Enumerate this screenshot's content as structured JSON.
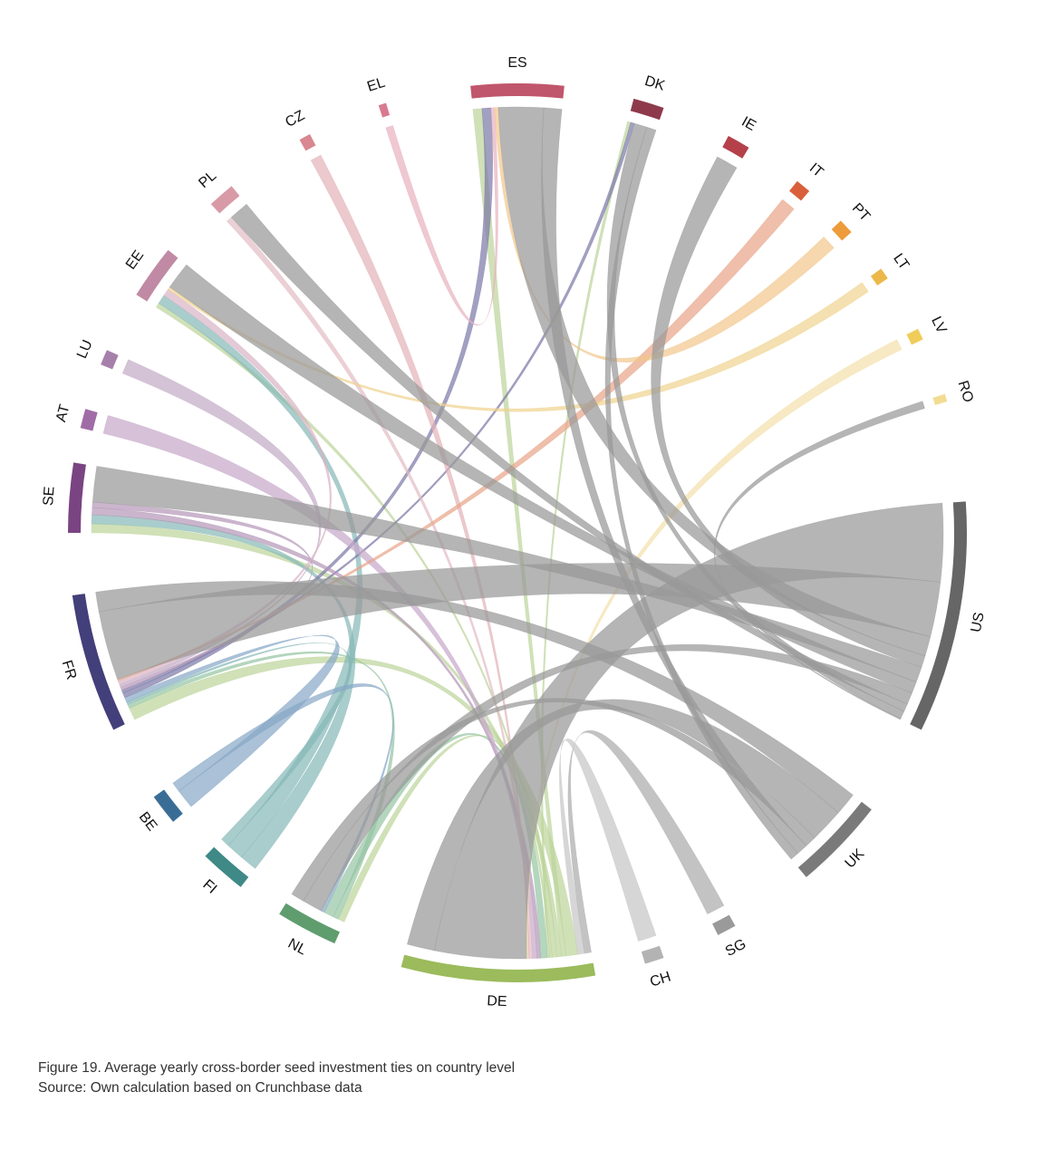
{
  "figure": {
    "caption": "Figure 19. Average yearly cross-border seed investment ties on country level",
    "source": "Source: Own calculation based on Crunchbase data"
  },
  "chart_data": {
    "type": "chord",
    "title": "",
    "nodes": [
      {
        "id": "ES",
        "label": "ES",
        "color": "#c0566b",
        "size": 14
      },
      {
        "id": "DK",
        "label": "DK",
        "color": "#8e3a4c",
        "size": 6
      },
      {
        "id": "IE",
        "label": "IE",
        "color": "#b5404a",
        "size": 4
      },
      {
        "id": "IT",
        "label": "IT",
        "color": "#d9603a",
        "size": 2.5
      },
      {
        "id": "PT",
        "label": "PT",
        "color": "#ee9b3c",
        "size": 2.5
      },
      {
        "id": "LT",
        "label": "LT",
        "color": "#ecb849",
        "size": 1.8
      },
      {
        "id": "LV",
        "label": "LV",
        "color": "#f0cc5a",
        "size": 1.5
      },
      {
        "id": "RO",
        "label": "RO",
        "color": "#f2dc92",
        "size": 1.2
      },
      {
        "id": "US",
        "label": "US",
        "color": "#666666",
        "size": 40
      },
      {
        "id": "UK",
        "label": "UK",
        "color": "#7a7a7a",
        "size": 15
      },
      {
        "id": "SG",
        "label": "SG",
        "color": "#9a9a9a",
        "size": 3
      },
      {
        "id": "CH",
        "label": "CH",
        "color": "#b3b3b3",
        "size": 3
      },
      {
        "id": "DE",
        "label": "DE",
        "color": "#9bbb5c",
        "size": 30
      },
      {
        "id": "NL",
        "label": "NL",
        "color": "#5f9d6e",
        "size": 10
      },
      {
        "id": "FI",
        "label": "FI",
        "color": "#3f8986",
        "size": 7
      },
      {
        "id": "BE",
        "label": "BE",
        "color": "#3a6d96",
        "size": 5
      },
      {
        "id": "FR",
        "label": "FR",
        "color": "#433f7a",
        "size": 22
      },
      {
        "id": "SE",
        "label": "SE",
        "color": "#7a4482",
        "size": 10
      },
      {
        "id": "AT",
        "label": "AT",
        "color": "#a06ca6",
        "size": 3
      },
      {
        "id": "LU",
        "label": "LU",
        "color": "#a680ab",
        "size": 2.5
      },
      {
        "id": "EE",
        "label": "EE",
        "color": "#c08aa4",
        "size": 8
      },
      {
        "id": "PL",
        "label": "PL",
        "color": "#d99aa7",
        "size": 4
      },
      {
        "id": "CZ",
        "label": "CZ",
        "color": "#d98790",
        "size": 1.5
      },
      {
        "id": "EL",
        "label": "EL",
        "color": "#d97a90",
        "size": 1.2
      }
    ],
    "links": [
      {
        "source": "DE",
        "target": "US",
        "value": 20,
        "color": "#999999"
      },
      {
        "source": "FR",
        "target": "US",
        "value": 14,
        "color": "#999999"
      },
      {
        "source": "ES",
        "target": "US",
        "value": 5,
        "color": "#999999"
      },
      {
        "source": "IE",
        "target": "US",
        "value": 3,
        "color": "#999999"
      },
      {
        "source": "SE",
        "target": "US",
        "value": 4,
        "color": "#999999"
      },
      {
        "source": "EE",
        "target": "US",
        "value": 3,
        "color": "#999999"
      },
      {
        "source": "NL",
        "target": "US",
        "value": 3,
        "color": "#999999"
      },
      {
        "source": "PL",
        "target": "US",
        "value": 2,
        "color": "#999999"
      },
      {
        "source": "DK",
        "target": "US",
        "value": 2,
        "color": "#999999"
      },
      {
        "source": "UK",
        "target": "FR",
        "value": 4,
        "color": "#999999"
      },
      {
        "source": "UK",
        "target": "DE",
        "value": 6,
        "color": "#999999"
      },
      {
        "source": "UK",
        "target": "NL",
        "value": 2,
        "color": "#999999"
      },
      {
        "source": "UK",
        "target": "ES",
        "value": 2,
        "color": "#999999"
      },
      {
        "source": "UK",
        "target": "DK",
        "value": 1.5,
        "color": "#999999"
      },
      {
        "source": "SG",
        "target": "DE",
        "value": 1.5,
        "color": "#aaaaaa"
      },
      {
        "source": "CH",
        "target": "DE",
        "value": 1.5,
        "color": "#c4c4c4"
      },
      {
        "source": "DE",
        "target": "FR",
        "value": 2.5,
        "color": "#bcd49a"
      },
      {
        "source": "DE",
        "target": "ES",
        "value": 1,
        "color": "#bcd49a"
      },
      {
        "source": "DE",
        "target": "SE",
        "value": 1,
        "color": "#bcd49a"
      },
      {
        "source": "DE",
        "target": "NL",
        "value": 1,
        "color": "#bcd49a"
      },
      {
        "source": "DE",
        "target": "EE",
        "value": 0.5,
        "color": "#bcd49a"
      },
      {
        "source": "DE",
        "target": "DK",
        "value": 0.5,
        "color": "#bcd49a"
      },
      {
        "source": "NL",
        "target": "FR",
        "value": 0.8,
        "color": "#94c4a2"
      },
      {
        "source": "NL",
        "target": "DE",
        "value": 1.5,
        "color": "#94c4a2"
      },
      {
        "source": "FI",
        "target": "SE",
        "value": 1,
        "color": "#85b8b6"
      },
      {
        "source": "FI",
        "target": "EE",
        "value": 1,
        "color": "#85b8b6"
      },
      {
        "source": "FI",
        "target": "FR",
        "value": 0.5,
        "color": "#85b8b6"
      },
      {
        "source": "BE",
        "target": "FR",
        "value": 1,
        "color": "#86a6c6"
      },
      {
        "source": "BE",
        "target": "NL",
        "value": 0.5,
        "color": "#86a6c6"
      },
      {
        "source": "FR",
        "target": "ES",
        "value": 1,
        "color": "#7b78a6"
      },
      {
        "source": "FR",
        "target": "DK",
        "value": 0.6,
        "color": "#7b78a6"
      },
      {
        "source": "SE",
        "target": "DE",
        "value": 0.8,
        "color": "#b495b8"
      },
      {
        "source": "SE",
        "target": "FR",
        "value": 0.6,
        "color": "#b495b8"
      },
      {
        "source": "AT",
        "target": "DE",
        "value": 1,
        "color": "#c6a6c9"
      },
      {
        "source": "LU",
        "target": "FR",
        "value": 0.6,
        "color": "#c2aac5"
      },
      {
        "source": "EE",
        "target": "FR",
        "value": 0.8,
        "color": "#d9b3c4"
      },
      {
        "source": "PL",
        "target": "DE",
        "value": 0.6,
        "color": "#e3bcc4"
      },
      {
        "source": "CZ",
        "target": "DE",
        "value": 0.3,
        "color": "#e3b2b8"
      },
      {
        "source": "EL",
        "target": "ES",
        "value": 0.4,
        "color": "#e8b1bd"
      },
      {
        "source": "IT",
        "target": "FR",
        "value": 0.3,
        "color": "#e8a488"
      },
      {
        "source": "PT",
        "target": "ES",
        "value": 0.4,
        "color": "#f2c68c"
      },
      {
        "source": "LT",
        "target": "EE",
        "value": 0.3,
        "color": "#f0d38e"
      },
      {
        "source": "LV",
        "target": "DE",
        "value": 0.3,
        "color": "#f4dfaa"
      },
      {
        "source": "RO",
        "target": "US",
        "value": 0.3,
        "color": "#999999"
      }
    ],
    "legend": "none"
  }
}
